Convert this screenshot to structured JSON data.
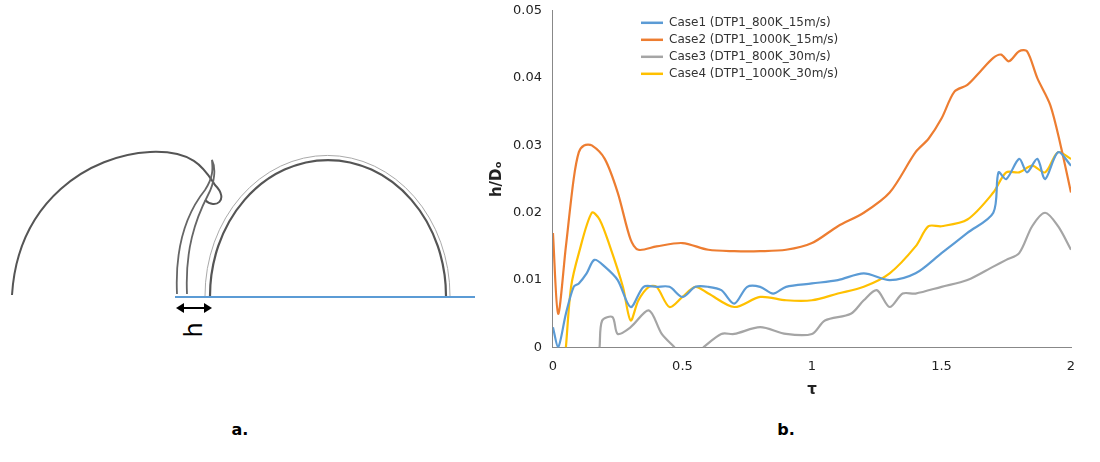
{
  "panel_labels": [
    "a.",
    "b."
  ],
  "diagram": {
    "dimension_label": "h"
  },
  "chart_data": {
    "type": "line",
    "x_label": "τ",
    "y_label": "h/Dₒ",
    "xlim": [
      0,
      2
    ],
    "xticks": [
      0,
      0.5,
      1,
      1.5,
      2
    ],
    "ylim": [
      0,
      0.05
    ],
    "yticks": [
      0,
      0.01,
      0.02,
      0.03,
      0.04,
      0.05
    ],
    "grid": false,
    "legend": "upper left",
    "series": [
      {
        "name": "Case1 (DTP1_800K_15m/s)",
        "color": "#5b9bd5",
        "x": [
          0.0,
          0.02,
          0.05,
          0.08,
          0.1,
          0.13,
          0.16,
          0.2,
          0.25,
          0.3,
          0.35,
          0.4,
          0.45,
          0.5,
          0.55,
          0.6,
          0.65,
          0.7,
          0.75,
          0.8,
          0.85,
          0.9,
          1.0,
          1.1,
          1.2,
          1.3,
          1.4,
          1.5,
          1.6,
          1.7,
          1.72,
          1.75,
          1.8,
          1.83,
          1.87,
          1.9,
          1.95,
          2.0
        ],
        "values": [
          0.003,
          0.0,
          0.005,
          0.009,
          0.0095,
          0.011,
          0.013,
          0.012,
          0.01,
          0.006,
          0.009,
          0.009,
          0.009,
          0.0075,
          0.009,
          0.009,
          0.0085,
          0.0065,
          0.009,
          0.009,
          0.008,
          0.009,
          0.0095,
          0.01,
          0.011,
          0.01,
          0.011,
          0.014,
          0.017,
          0.02,
          0.026,
          0.025,
          0.028,
          0.026,
          0.028,
          0.025,
          0.029,
          0.027
        ]
      },
      {
        "name": "Case2 (DTP1_1000K_15m/s)",
        "color": "#ed7d31",
        "x": [
          0.0,
          0.02,
          0.05,
          0.08,
          0.1,
          0.12,
          0.15,
          0.2,
          0.25,
          0.3,
          0.33,
          0.4,
          0.5,
          0.6,
          0.7,
          0.8,
          0.9,
          1.0,
          1.1,
          1.2,
          1.3,
          1.4,
          1.45,
          1.5,
          1.55,
          1.6,
          1.65,
          1.7,
          1.73,
          1.76,
          1.8,
          1.83,
          1.87,
          1.92,
          1.96,
          2.0
        ],
        "values": [
          0.017,
          0.005,
          0.015,
          0.025,
          0.029,
          0.03,
          0.03,
          0.028,
          0.023,
          0.016,
          0.0145,
          0.015,
          0.0155,
          0.0145,
          0.0143,
          0.0143,
          0.0145,
          0.0155,
          0.018,
          0.02,
          0.023,
          0.029,
          0.031,
          0.034,
          0.038,
          0.039,
          0.041,
          0.043,
          0.0435,
          0.0425,
          0.044,
          0.044,
          0.04,
          0.036,
          0.03,
          0.023
        ]
      },
      {
        "name": "Case3 (DTP1_800K_30m/s)",
        "color": "#a5a5a5",
        "x": [
          0.18,
          0.19,
          0.23,
          0.25,
          0.3,
          0.37,
          0.42,
          0.47,
          0.52,
          0.58,
          0.65,
          0.7,
          0.8,
          0.9,
          1.0,
          1.05,
          1.15,
          1.2,
          1.25,
          1.3,
          1.35,
          1.4,
          1.5,
          1.6,
          1.7,
          1.75,
          1.8,
          1.85,
          1.9,
          1.95,
          2.0
        ],
        "values": [
          0.0,
          0.004,
          0.0045,
          0.002,
          0.003,
          0.0055,
          0.002,
          0.0,
          null,
          0.0,
          0.002,
          0.002,
          0.003,
          0.002,
          0.002,
          0.004,
          0.005,
          0.007,
          0.0085,
          0.006,
          0.008,
          0.008,
          0.009,
          0.01,
          0.012,
          0.013,
          0.014,
          0.018,
          0.02,
          0.018,
          0.0145
        ]
      },
      {
        "name": "Case4 (DTP1_1000K_30m/s)",
        "color": "#ffc000",
        "x": [
          0.05,
          0.07,
          0.1,
          0.15,
          0.18,
          0.22,
          0.27,
          0.3,
          0.33,
          0.37,
          0.4,
          0.45,
          0.5,
          0.55,
          0.6,
          0.7,
          0.8,
          0.9,
          1.0,
          1.1,
          1.2,
          1.3,
          1.4,
          1.45,
          1.5,
          1.6,
          1.7,
          1.75,
          1.8,
          1.85,
          1.9,
          1.95,
          2.0
        ],
        "values": [
          0.0,
          0.009,
          0.014,
          0.02,
          0.019,
          0.015,
          0.009,
          0.004,
          0.007,
          0.009,
          0.009,
          0.006,
          0.0075,
          0.009,
          0.008,
          0.006,
          0.0075,
          0.007,
          0.007,
          0.008,
          0.009,
          0.011,
          0.015,
          0.018,
          0.018,
          0.019,
          0.023,
          0.026,
          0.026,
          0.027,
          0.026,
          0.029,
          0.028
        ]
      }
    ]
  }
}
